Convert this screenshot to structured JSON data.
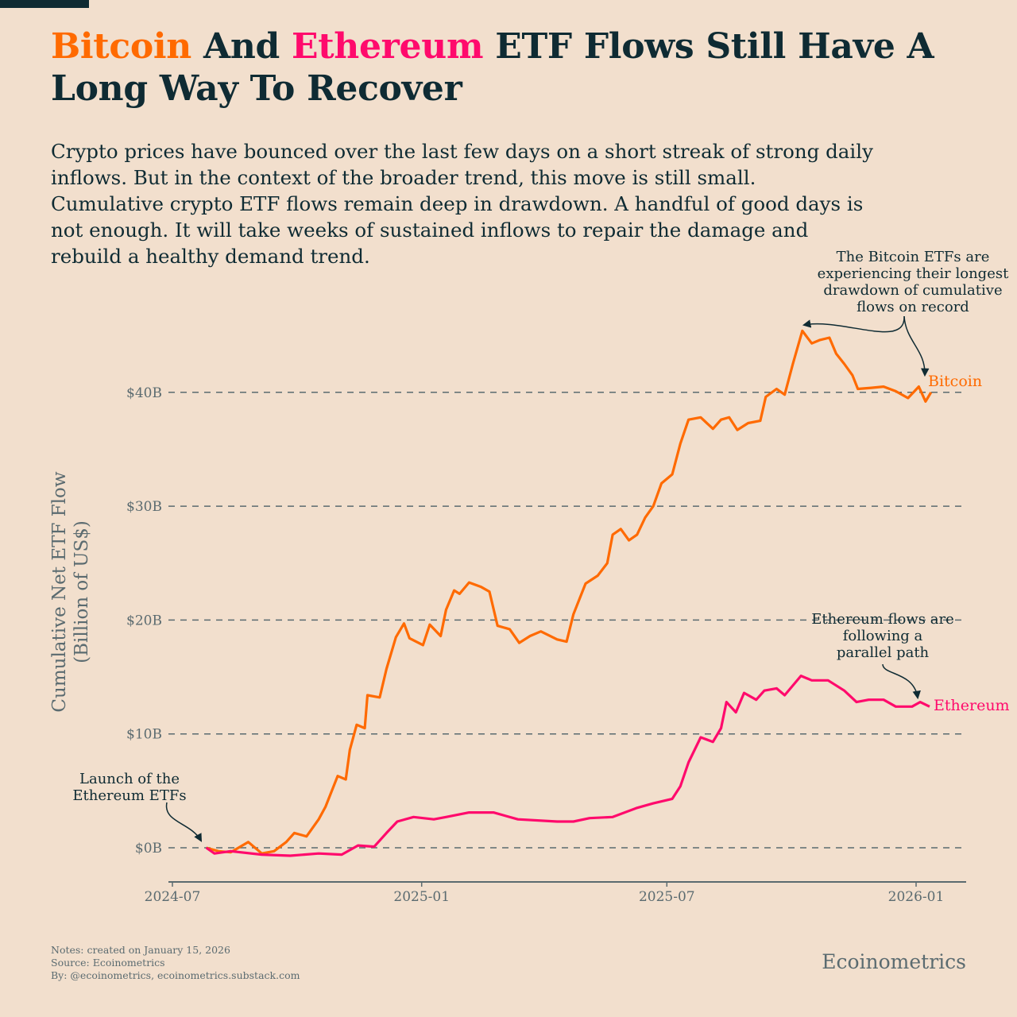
{
  "title": {
    "part1": "Bitcoin",
    "part2": " And ",
    "part3": "Ethereum",
    "part4": " ETF Flows Still Have A Long Way To Recover"
  },
  "subtitle_lines": [
    "Crypto prices have bounced over the last few days on a short streak of strong daily",
    "inflows. But in the context of the broader trend, this move is still small.",
    "Cumulative crypto ETF flows remain deep in drawdown. A handful of good days is",
    "not enough. It will take weeks of sustained inflows to repair the damage and",
    "rebuild a healthy demand trend."
  ],
  "colors": {
    "background": "#f2dfcd",
    "text": "#0f2b33",
    "bitcoin": "#ff6a00",
    "ethereum": "#ff0a6c",
    "axis": "#5b6b70"
  },
  "chart_data": {
    "type": "line",
    "ylabel_line1": "Cumulative Net ETF Flow",
    "ylabel_line2": "(Billion of US$)",
    "ylim": [
      -3,
      46.5
    ],
    "xlim": [
      "2024-06-25",
      "2026-01-30"
    ],
    "yticks": [
      0,
      10,
      20,
      30,
      40
    ],
    "ytick_labels": [
      "$0B",
      "$10B",
      "$20B",
      "$30B",
      "$40B"
    ],
    "xticks": [
      "2024-07-01",
      "2025-01-01",
      "2025-07-01",
      "2026-01-01"
    ],
    "xtick_labels": [
      "2024-07",
      "2025-01",
      "2025-07",
      "2026-01"
    ],
    "grid": "horizontal dashed",
    "series": [
      {
        "name": "Bitcoin",
        "color": "#ff6a00",
        "x": [
          "2024-07-26",
          "2024-08-04",
          "2024-08-13",
          "2024-08-26",
          "2024-09-05",
          "2024-09-14",
          "2024-09-23",
          "2024-09-29",
          "2024-10-08",
          "2024-10-17",
          "2024-10-22",
          "2024-10-31",
          "2024-11-06",
          "2024-11-09",
          "2024-11-14",
          "2024-11-20",
          "2024-11-22",
          "2024-12-01",
          "2024-12-06",
          "2024-12-13",
          "2024-12-19",
          "2024-12-23",
          "2025-01-02",
          "2025-01-07",
          "2025-01-15",
          "2025-01-19",
          "2025-01-25",
          "2025-01-29",
          "2025-02-05",
          "2025-02-14",
          "2025-02-20",
          "2025-02-26",
          "2025-03-07",
          "2025-03-14",
          "2025-03-22",
          "2025-03-30",
          "2025-04-11",
          "2025-04-18",
          "2025-04-23",
          "2025-05-02",
          "2025-05-11",
          "2025-05-18",
          "2025-05-22",
          "2025-05-28",
          "2025-06-03",
          "2025-06-09",
          "2025-06-15",
          "2025-06-21",
          "2025-06-27",
          "2025-07-05",
          "2025-07-11",
          "2025-07-17",
          "2025-07-26",
          "2025-08-04",
          "2025-08-10",
          "2025-08-16",
          "2025-08-22",
          "2025-08-30",
          "2025-09-08",
          "2025-09-12",
          "2025-09-20",
          "2025-09-26",
          "2025-10-02",
          "2025-10-09",
          "2025-10-16",
          "2025-10-22",
          "2025-10-29",
          "2025-11-03",
          "2025-11-09",
          "2025-11-15",
          "2025-11-19",
          "2025-11-29",
          "2025-12-08",
          "2025-12-17",
          "2025-12-26",
          "2026-01-03",
          "2026-01-08",
          "2026-01-12"
        ],
        "values": [
          0,
          -0.3,
          -0.4,
          0.5,
          -0.5,
          -0.3,
          0.5,
          1.3,
          1.0,
          2.5,
          3.6,
          6.3,
          6.0,
          8.6,
          10.8,
          10.5,
          13.4,
          13.2,
          15.7,
          18.5,
          19.7,
          18.4,
          17.8,
          19.6,
          18.6,
          20.9,
          22.6,
          22.3,
          23.3,
          22.9,
          22.5,
          19.5,
          19.2,
          18.0,
          18.6,
          19.0,
          18.3,
          18.1,
          20.5,
          23.2,
          23.9,
          25.0,
          27.5,
          28.0,
          27.0,
          27.5,
          29.0,
          30.0,
          32.0,
          32.8,
          35.5,
          37.6,
          37.8,
          36.8,
          37.6,
          37.8,
          36.7,
          37.3,
          37.5,
          39.6,
          40.3,
          39.8,
          42.5,
          45.4,
          44.3,
          44.6,
          44.8,
          43.4,
          42.5,
          41.5,
          40.3,
          40.4,
          40.5,
          40.1,
          39.5,
          40.5,
          39.2,
          40.0
        ]
      },
      {
        "name": "Ethereum",
        "color": "#ff0a6c",
        "x": [
          "2024-07-26",
          "2024-08-01",
          "2024-08-13",
          "2024-09-05",
          "2024-09-26",
          "2024-10-17",
          "2024-11-03",
          "2024-11-15",
          "2024-11-27",
          "2024-12-06",
          "2024-12-14",
          "2024-12-26",
          "2025-01-10",
          "2025-01-19",
          "2025-02-05",
          "2025-02-23",
          "2025-03-13",
          "2025-04-11",
          "2025-04-23",
          "2025-05-05",
          "2025-05-22",
          "2025-06-09",
          "2025-06-21",
          "2025-07-05",
          "2025-07-11",
          "2025-07-17",
          "2025-07-26",
          "2025-08-04",
          "2025-08-10",
          "2025-08-14",
          "2025-08-21",
          "2025-08-27",
          "2025-09-05",
          "2025-09-11",
          "2025-09-20",
          "2025-09-26",
          "2025-10-08",
          "2025-10-16",
          "2025-10-28",
          "2025-11-09",
          "2025-11-18",
          "2025-11-27",
          "2025-12-08",
          "2025-12-17",
          "2025-12-29",
          "2026-01-04",
          "2026-01-11"
        ],
        "values": [
          0,
          -0.5,
          -0.3,
          -0.6,
          -0.7,
          -0.5,
          -0.6,
          0.2,
          0.1,
          1.3,
          2.3,
          2.7,
          2.5,
          2.7,
          3.1,
          3.1,
          2.5,
          2.3,
          2.3,
          2.6,
          2.7,
          3.5,
          3.9,
          4.3,
          5.4,
          7.5,
          9.7,
          9.3,
          10.5,
          12.8,
          11.9,
          13.6,
          13.0,
          13.8,
          14.0,
          13.4,
          15.1,
          14.7,
          14.7,
          13.8,
          12.8,
          13.0,
          13.0,
          12.4,
          12.4,
          12.8,
          12.4
        ]
      }
    ],
    "annotations": {
      "eth_launch": [
        "Launch of the",
        "Ethereum ETFs"
      ],
      "btc_drawdown": [
        "The Bitcoin ETFs are",
        "experiencing their longest",
        "drawdown of  cumulative",
        "flows on record"
      ],
      "eth_path": [
        "Ethereum flows are",
        "following a",
        "parallel path"
      ]
    }
  },
  "footer": {
    "notes": "Notes: created on January 15, 2026",
    "source": "Source: Ecoinometrics",
    "by": "By: @ecoinometrics, ecoinometrics.substack.com",
    "brand": "Ecoinometrics"
  }
}
